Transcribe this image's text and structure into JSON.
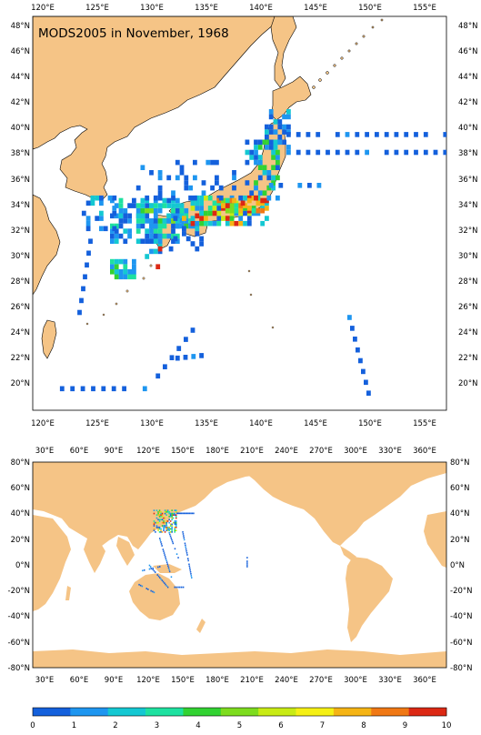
{
  "title": "MODS2005 in November, 1968",
  "colors": {
    "land": "#f5c486",
    "ocean": "#ffffff",
    "frame": "#000000"
  },
  "regional_map": {
    "lon_range": [
      119.5,
      157.5
    ],
    "lat_range": [
      18.5,
      49.5
    ],
    "lon_ticks": [
      "120°E",
      "125°E",
      "130°E",
      "135°E",
      "140°E",
      "145°E",
      "150°E",
      "155°E"
    ],
    "lat_ticks": [
      "48°N",
      "46°N",
      "44°N",
      "42°N",
      "40°N",
      "38°N",
      "36°N",
      "34°N",
      "32°N",
      "30°N",
      "28°N",
      "26°N",
      "24°N",
      "22°N",
      "20°N"
    ]
  },
  "global_map": {
    "lon_range": [
      20,
      380
    ],
    "lat_range": [
      -80,
      80
    ],
    "lon_ticks": [
      "30°E",
      "60°E",
      "90°E",
      "120°E",
      "150°E",
      "180°E",
      "210°E",
      "240°E",
      "270°E",
      "300°E",
      "330°E",
      "360°E"
    ],
    "lat_ticks": [
      "80°N",
      "60°N",
      "40°N",
      "20°N",
      "0°N",
      "-20°N",
      "-40°N",
      "-60°N",
      "-80°N"
    ]
  },
  "colorbar": {
    "labels": [
      "0",
      "1",
      "2",
      "3",
      "4",
      "5",
      "6",
      "7",
      "8",
      "9",
      "10"
    ],
    "colors": [
      "#1460dc",
      "#1e96f0",
      "#14c8d2",
      "#1ee1a0",
      "#32d232",
      "#7ddc1e",
      "#c8eb14",
      "#f5f014",
      "#f5b414",
      "#f07814",
      "#dc2814"
    ]
  }
}
